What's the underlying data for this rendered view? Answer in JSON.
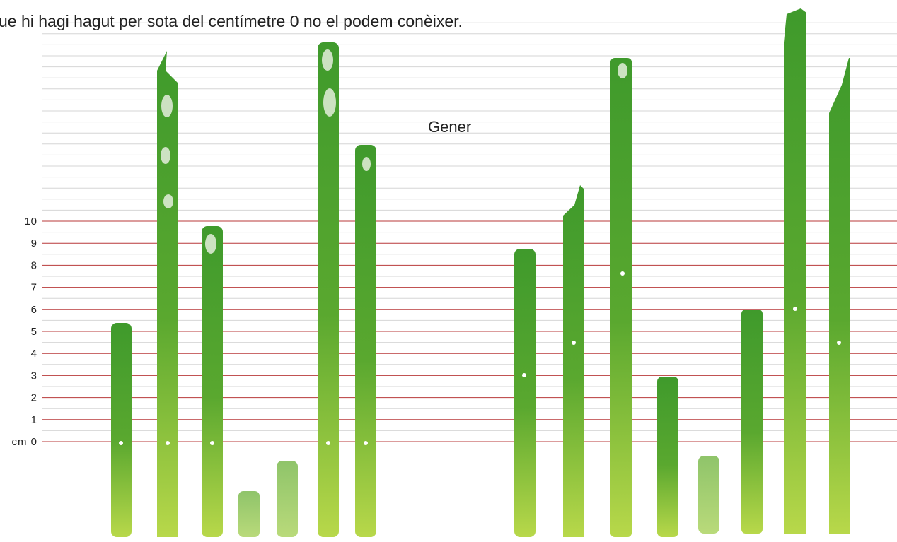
{
  "header": {
    "text": "ue hi hagi hagut per sota del centímetre 0 no el podem conèixer."
  },
  "title": "Gener",
  "scale": {
    "labels": [
      "cm 0",
      "1",
      "2",
      "3",
      "4",
      "5",
      "6",
      "7",
      "8",
      "9",
      "10"
    ]
  }
}
